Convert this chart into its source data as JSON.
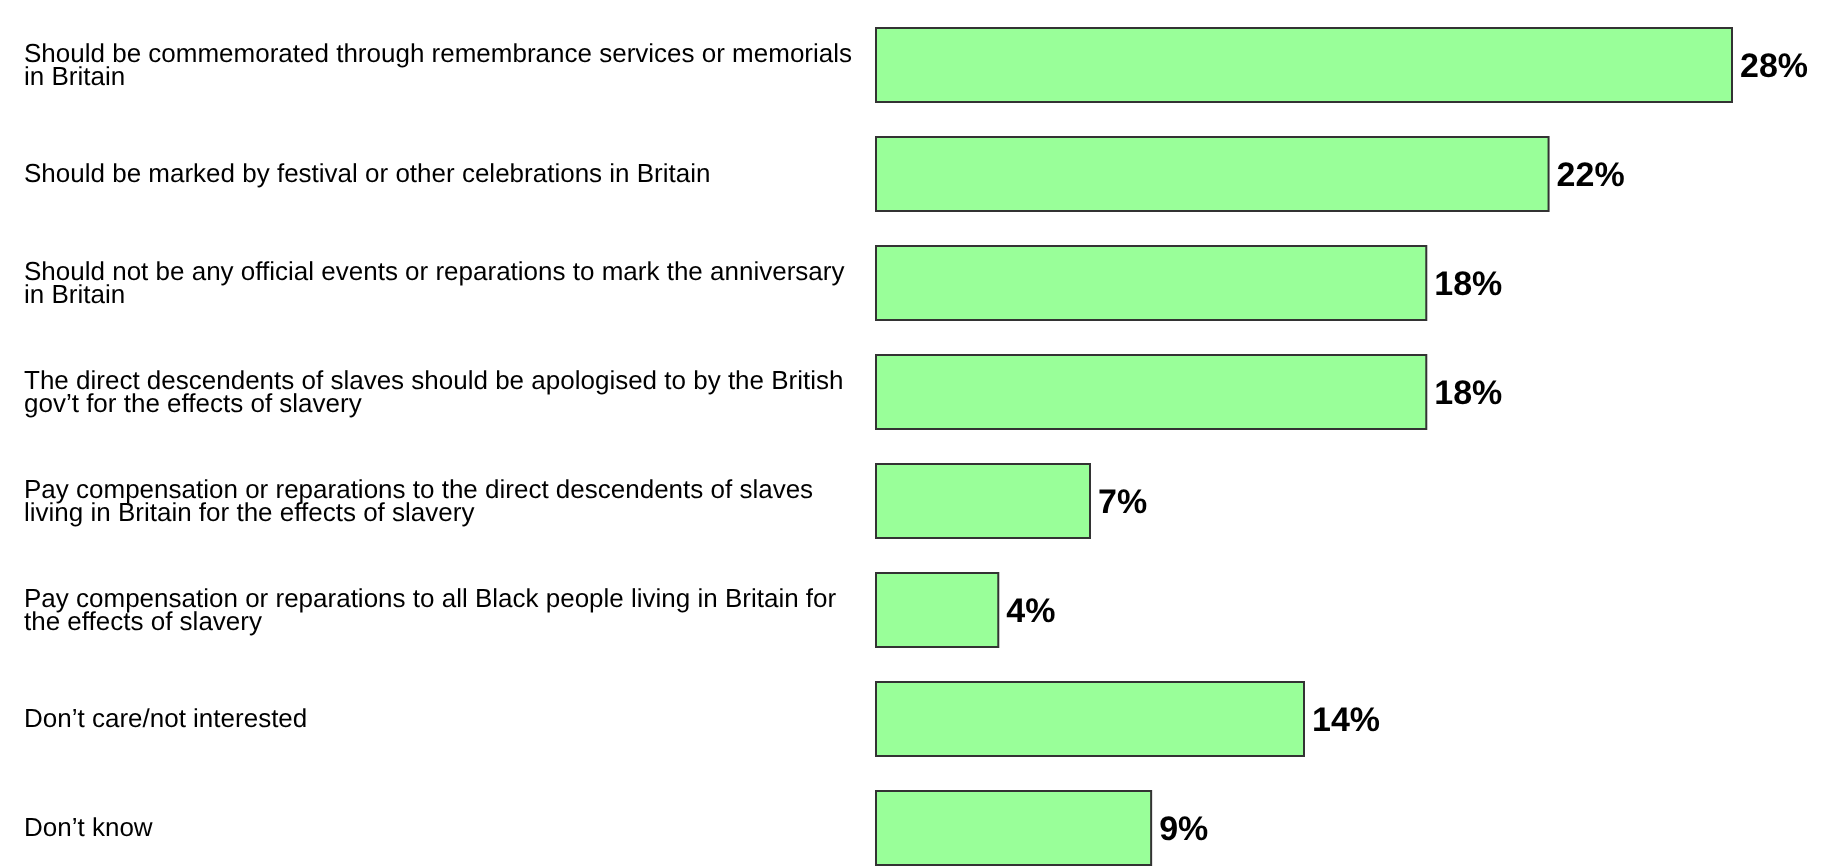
{
  "chart_data": {
    "type": "bar",
    "orientation": "horizontal",
    "categories": [
      "Should be commemorated through remembrance services or memorials in Britain",
      "Should be marked by festival or other celebrations in Britain",
      "Should not be any official events or reparations to mark the anniversary in Britain",
      "The direct descendents of slaves should be apologised to by the British gov’t for the effects of slavery",
      "Pay compensation or reparations to the direct descendents of slaves living in Britain for the effects of slavery",
      "Pay compensation or reparations to all Black people living in Britain for the effects of slavery",
      "Don’t care/not interested",
      "Don’t know"
    ],
    "values": [
      28,
      22,
      18,
      18,
      7,
      4,
      14,
      9
    ],
    "value_labels": [
      "28%",
      "22%",
      "18%",
      "18%",
      "7%",
      "4%",
      "14%",
      "9%"
    ],
    "color": "#99ff99",
    "xlim": [
      0,
      28
    ]
  }
}
